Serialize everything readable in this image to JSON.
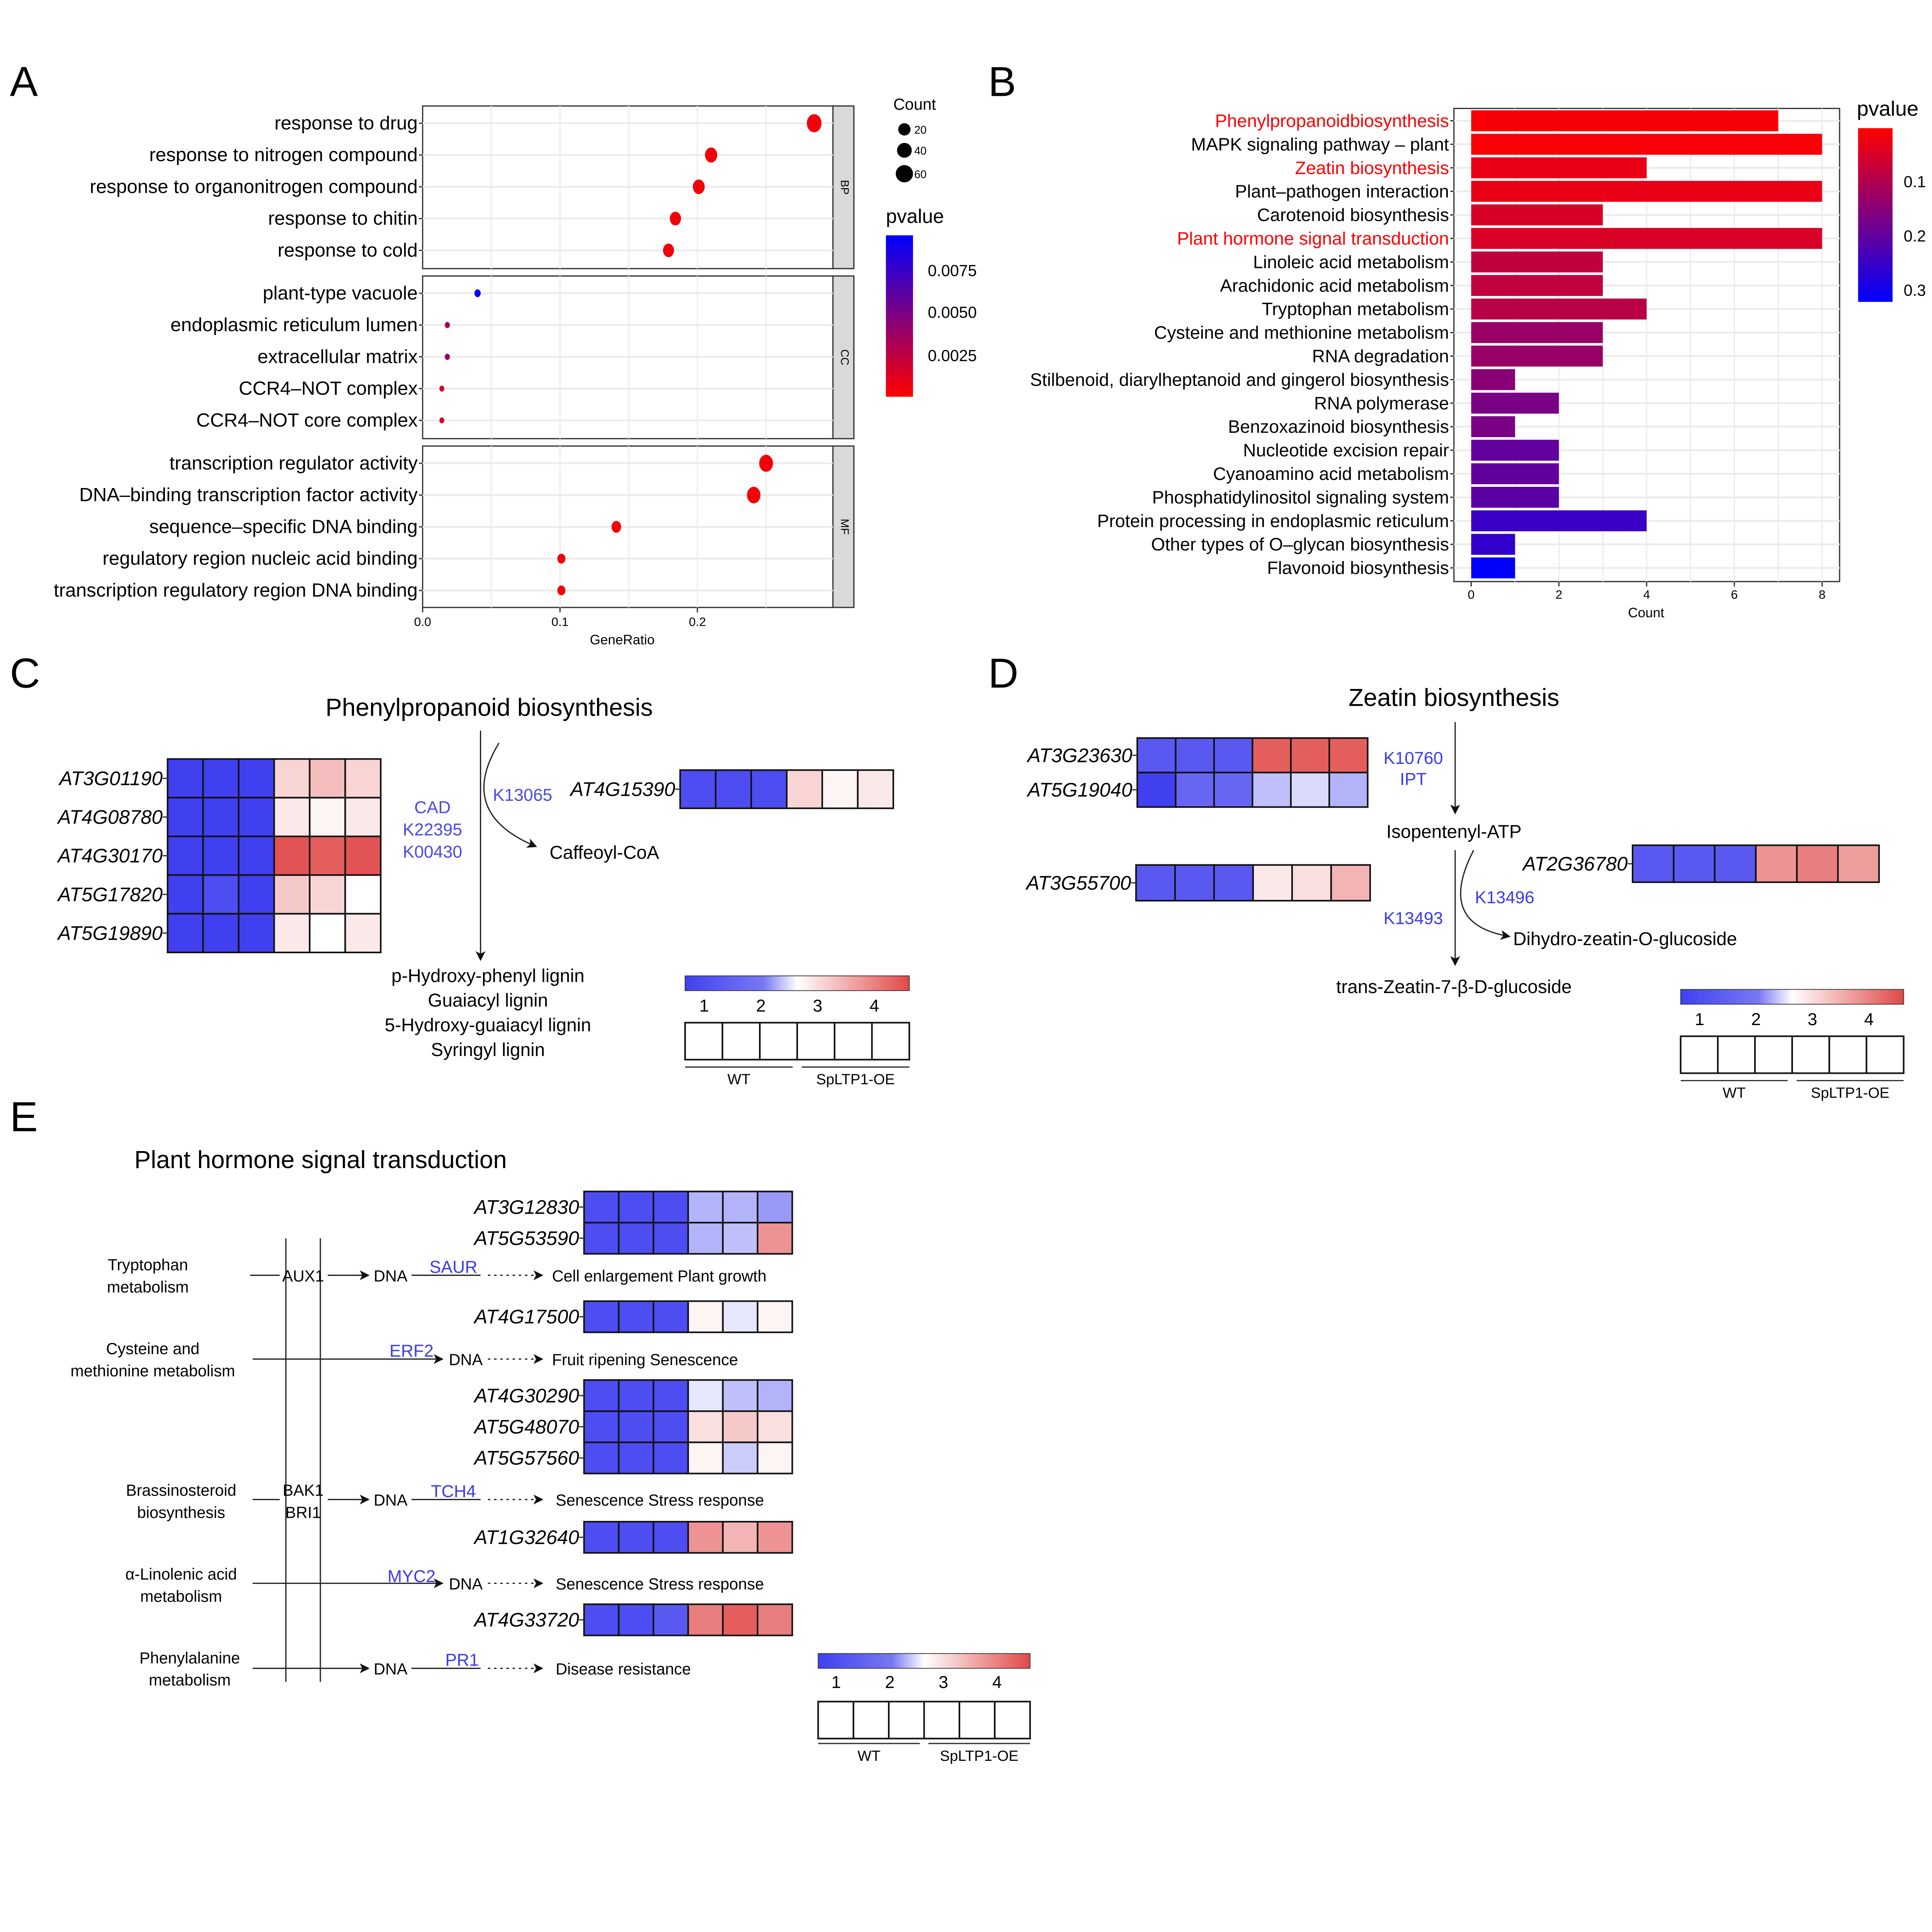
{
  "panel_labels": {
    "a": "A",
    "b": "B",
    "c": "C",
    "d": "D",
    "e": "E"
  },
  "chart_data": [
    {
      "type": "scatter",
      "title": "",
      "xlabel": "GeneRatio",
      "ylabel": "",
      "xlim": [
        0,
        0.3
      ],
      "xticks": [
        "0.0",
        "0.1",
        "0.2"
      ],
      "grid": true,
      "facets": [
        {
          "name": "BP",
          "terms": [
            {
              "term": "response to drug",
              "gene_ratio": 0.285,
              "count": 60,
              "pvalue": 0.0004
            },
            {
              "term": "response to nitrogen compound",
              "gene_ratio": 0.21,
              "count": 46,
              "pvalue": 0.0004
            },
            {
              "term": "response to organonitrogen compound",
              "gene_ratio": 0.201,
              "count": 44,
              "pvalue": 0.0004
            },
            {
              "term": "response to chitin",
              "gene_ratio": 0.184,
              "count": 40,
              "pvalue": 0.0004
            },
            {
              "term": "response to cold",
              "gene_ratio": 0.179,
              "count": 39,
              "pvalue": 0.0004
            }
          ]
        },
        {
          "name": "CC",
          "terms": [
            {
              "term": "plant-type vacuole",
              "gene_ratio": 0.04,
              "count": 12,
              "pvalue": 0.0093
            },
            {
              "term": "endoplasmic reticulum lumen",
              "gene_ratio": 0.018,
              "count": 5,
              "pvalue": 0.0035
            },
            {
              "term": "extracellular matrix",
              "gene_ratio": 0.018,
              "count": 5,
              "pvalue": 0.0038
            },
            {
              "term": "CCR4–NOT complex",
              "gene_ratio": 0.014,
              "count": 4,
              "pvalue": 0.0015
            },
            {
              "term": "CCR4–NOT core complex",
              "gene_ratio": 0.014,
              "count": 4,
              "pvalue": 0.0015
            }
          ]
        },
        {
          "name": "MF",
          "terms": [
            {
              "term": "transcription regulator activity",
              "gene_ratio": 0.25,
              "count": 55,
              "pvalue": 0.0004
            },
            {
              "term": "DNA–binding transcription factor activity",
              "gene_ratio": 0.241,
              "count": 53,
              "pvalue": 0.0004
            },
            {
              "term": "sequence–specific DNA binding",
              "gene_ratio": 0.141,
              "count": 31,
              "pvalue": 0.0004
            },
            {
              "term": "regulatory region nucleic acid binding",
              "gene_ratio": 0.101,
              "count": 22,
              "pvalue": 0.0004
            },
            {
              "term": "transcription regulatory region DNA binding",
              "gene_ratio": 0.101,
              "count": 22,
              "pvalue": 0.0004
            }
          ]
        }
      ],
      "size_legend": {
        "title": "Count",
        "values": [
          "20",
          "40",
          "60"
        ]
      },
      "color_legend": {
        "title": "pvalue",
        "ticks": [
          "0.0075",
          "0.0050",
          "0.0025"
        ],
        "range": [
          0,
          0.0096
        ],
        "low_color": "#ff0000",
        "high_color": "#0000ff"
      }
    },
    {
      "type": "bar",
      "orientation": "horizontal",
      "xlabel": "Count",
      "xlim": [
        0,
        8
      ],
      "xticks": [
        "0",
        "2",
        "4",
        "6",
        "8"
      ],
      "grid": true,
      "highlight_color": "#ff0000",
      "categories": [
        {
          "label": "Phenylpropanoidbiosynthesis",
          "count": 7,
          "pvalue": 0.01,
          "highlight": true
        },
        {
          "label": "MAPK signaling pathway – plant",
          "count": 8,
          "pvalue": 0.01,
          "highlight": false
        },
        {
          "label": "Zeatin biosynthesis",
          "count": 4,
          "pvalue": 0.03,
          "highlight": true
        },
        {
          "label": "Plant–pathogen interaction",
          "count": 8,
          "pvalue": 0.03,
          "highlight": false
        },
        {
          "label": "Carotenoid biosynthesis",
          "count": 3,
          "pvalue": 0.05,
          "highlight": false
        },
        {
          "label": "Plant hormone signal transduction",
          "count": 8,
          "pvalue": 0.05,
          "highlight": true
        },
        {
          "label": "Linoleic acid metabolism",
          "count": 3,
          "pvalue": 0.08,
          "highlight": false
        },
        {
          "label": "Arachidonic acid metabolism",
          "count": 3,
          "pvalue": 0.08,
          "highlight": false
        },
        {
          "label": "Tryptophan metabolism",
          "count": 4,
          "pvalue": 0.09,
          "highlight": false
        },
        {
          "label": "Cysteine and methionine metabolism",
          "count": 3,
          "pvalue": 0.13,
          "highlight": false
        },
        {
          "label": "RNA degradation",
          "count": 3,
          "pvalue": 0.13,
          "highlight": false
        },
        {
          "label": "Stilbenoid, diarylheptanoid and gingerol biosynthesis",
          "count": 1,
          "pvalue": 0.15,
          "highlight": false
        },
        {
          "label": "RNA polymerase",
          "count": 2,
          "pvalue": 0.17,
          "highlight": false
        },
        {
          "label": "Benzoxazinoid biosynthesis",
          "count": 1,
          "pvalue": 0.17,
          "highlight": false
        },
        {
          "label": "Nucleotide excision repair",
          "count": 2,
          "pvalue": 0.2,
          "highlight": false
        },
        {
          "label": "Cyanoamino acid metabolism",
          "count": 2,
          "pvalue": 0.2,
          "highlight": false
        },
        {
          "label": "Phosphatidylinositol signaling system",
          "count": 2,
          "pvalue": 0.21,
          "highlight": false
        },
        {
          "label": "Protein processing in endoplasmic reticulum",
          "count": 4,
          "pvalue": 0.25,
          "highlight": false
        },
        {
          "label": "Other types of O–glycan biosynthesis",
          "count": 1,
          "pvalue": 0.26,
          "highlight": false
        },
        {
          "label": "Flavonoid biosynthesis",
          "count": 1,
          "pvalue": 0.32,
          "highlight": false
        }
      ],
      "color_legend": {
        "title": "pvalue",
        "ticks": [
          "0.1",
          "0.2",
          "0.3"
        ],
        "range": [
          0.002,
          0.323
        ],
        "low_color": "#ff0000",
        "high_color": "#0000ff"
      }
    }
  ],
  "heatmap_scale": {
    "ticks": [
      "1",
      "2",
      "3",
      "4"
    ],
    "low_color": "#4040f0",
    "mid_color": "#ffffff",
    "high_color": "#e04848",
    "groups": [
      "WT",
      "SpLTP1-OE"
    ]
  },
  "panel_c": {
    "title": "Phenylpropanoid biosynthesis",
    "genes": [
      {
        "id": "AT3G01190",
        "values": [
          1,
          1,
          1,
          2.9,
          3.1,
          2.9
        ]
      },
      {
        "id": "AT4G08780",
        "values": [
          1,
          1,
          1,
          2.7,
          2.6,
          2.7
        ]
      },
      {
        "id": "AT4G30170",
        "values": [
          1,
          1,
          1,
          4.1,
          4.0,
          4.1
        ]
      },
      {
        "id": "AT5G17820",
        "values": [
          1,
          1.1,
          1,
          3.0,
          2.9,
          2.5
        ]
      },
      {
        "id": "AT5G19890",
        "values": [
          1,
          1,
          1,
          2.7,
          2.5,
          2.7
        ]
      }
    ],
    "gene2": {
      "id": "AT4G15390",
      "values": [
        1.1,
        1.1,
        1.1,
        2.9,
        2.6,
        2.7
      ]
    },
    "enzymes": [
      "CAD",
      "K22395",
      "K00430"
    ],
    "ko": "K13065",
    "product": "Caffeoyl-CoA",
    "lignins": [
      "p-Hydroxy-phenyl lignin",
      "Guaiacyl lignin",
      "5-Hydroxy-guaiacyl lignin",
      "Syringyl lignin"
    ]
  },
  "panel_d": {
    "title": "Zeatin biosynthesis",
    "genes_top": [
      {
        "id": "AT3G23630",
        "values": [
          1.2,
          1.2,
          1.2,
          4.0,
          4.0,
          4.0
        ]
      },
      {
        "id": "AT5G19040",
        "values": [
          1.0,
          1.3,
          1.3,
          2.0,
          2.2,
          1.9
        ]
      }
    ],
    "gene_left": {
      "id": "AT3G55700",
      "values": [
        1.2,
        1.2,
        1.2,
        2.7,
        2.8,
        3.2
      ]
    },
    "gene_right": {
      "id": "AT2G36780",
      "values": [
        1.2,
        1.2,
        1.2,
        3.5,
        3.7,
        3.4
      ]
    },
    "ko_top": [
      "K10760",
      "IPT"
    ],
    "intermediate": "Isopentenyl-ATP",
    "ko_right": "K13496",
    "ko_left": "K13493",
    "product_right": "Dihydro-zeatin-O-glucoside",
    "product_bottom": "trans-Zeatin-7-β-D-glucoside"
  },
  "panel_e": {
    "title": "Plant hormone signal transduction",
    "pathways": [
      {
        "line1": "Tryptophan",
        "line2": "metabolism"
      },
      {
        "line1": "Cysteine and",
        "line2": "methionine metabolism"
      },
      {
        "line1": "Brassinosteroid",
        "line2": "biosynthesis"
      },
      {
        "line1": "α-Linolenic acid",
        "line2": "metabolism"
      },
      {
        "line1": "Phenylalanine",
        "line2": "metabolism"
      }
    ],
    "receptors": [
      "AUX1",
      "BAK1",
      "BRI1"
    ],
    "dna": "DNA",
    "factors": [
      "SAUR",
      "ERF2",
      "TCH4",
      "MYC2",
      "PR1"
    ],
    "responses": [
      "Cell enlargement Plant growth",
      "Fruit ripening Senescence",
      "Senescence Stress response",
      "Senescence Stress response",
      "Disease resistance"
    ],
    "gene_groups": [
      [
        {
          "id": "AT3G12830",
          "values": [
            1.1,
            1.1,
            1.1,
            1.9,
            1.9,
            1.7
          ]
        },
        {
          "id": "AT5G53590",
          "values": [
            1.1,
            1.1,
            1.1,
            1.9,
            2.0,
            3.5
          ]
        }
      ],
      [
        {
          "id": "AT4G17500",
          "values": [
            1.1,
            1.1,
            1.1,
            2.6,
            2.3,
            2.6
          ]
        }
      ],
      [
        {
          "id": "AT4G30290",
          "values": [
            1.1,
            1.1,
            1.1,
            2.3,
            2.0,
            1.9
          ]
        },
        {
          "id": "AT5G48070",
          "values": [
            1.1,
            1.1,
            1.1,
            2.8,
            3.0,
            2.8
          ]
        },
        {
          "id": "AT5G57560",
          "values": [
            1.1,
            1.1,
            1.1,
            2.6,
            2.1,
            2.6
          ]
        }
      ],
      [
        {
          "id": "AT1G32640",
          "values": [
            1.1,
            1.1,
            1.1,
            3.5,
            3.2,
            3.5
          ]
        }
      ],
      [
        {
          "id": "AT4G33720",
          "values": [
            1.1,
            1.1,
            1.2,
            3.7,
            4.0,
            3.7
          ]
        }
      ]
    ]
  }
}
